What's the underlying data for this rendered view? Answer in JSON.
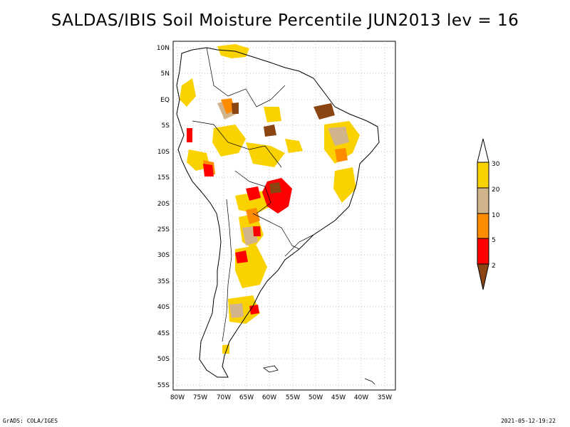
{
  "title": "SALDAS/IBIS Soil Moisture Percentile JUN2013 lev = 16",
  "footer": {
    "left": "GrADS: COLA/IGES",
    "right": "2021-05-12-19:22"
  },
  "map": {
    "lat_ticks": [
      "10N",
      "5N",
      "EQ",
      "5S",
      "10S",
      "15S",
      "20S",
      "25S",
      "30S",
      "35S",
      "40S",
      "45S",
      "50S",
      "55S"
    ],
    "lon_ticks": [
      "80W",
      "75W",
      "70W",
      "65W",
      "60W",
      "55W",
      "50W",
      "45W",
      "40W",
      "35W"
    ],
    "lat_range": [
      -56,
      11
    ],
    "lon_range": [
      -81,
      -33
    ],
    "grid": true,
    "grid_style": "dotted"
  },
  "legend": {
    "placement": "right",
    "labels": [
      "30",
      "20",
      "10",
      "5",
      "2"
    ],
    "colors": {
      "above_30": "#ffffff",
      "20_30": "#fad200",
      "10_20": "#d2b48c",
      "5_10": "#ff8c00",
      "2_5": "#ff0000",
      "below_2": "#8b4513"
    }
  }
}
